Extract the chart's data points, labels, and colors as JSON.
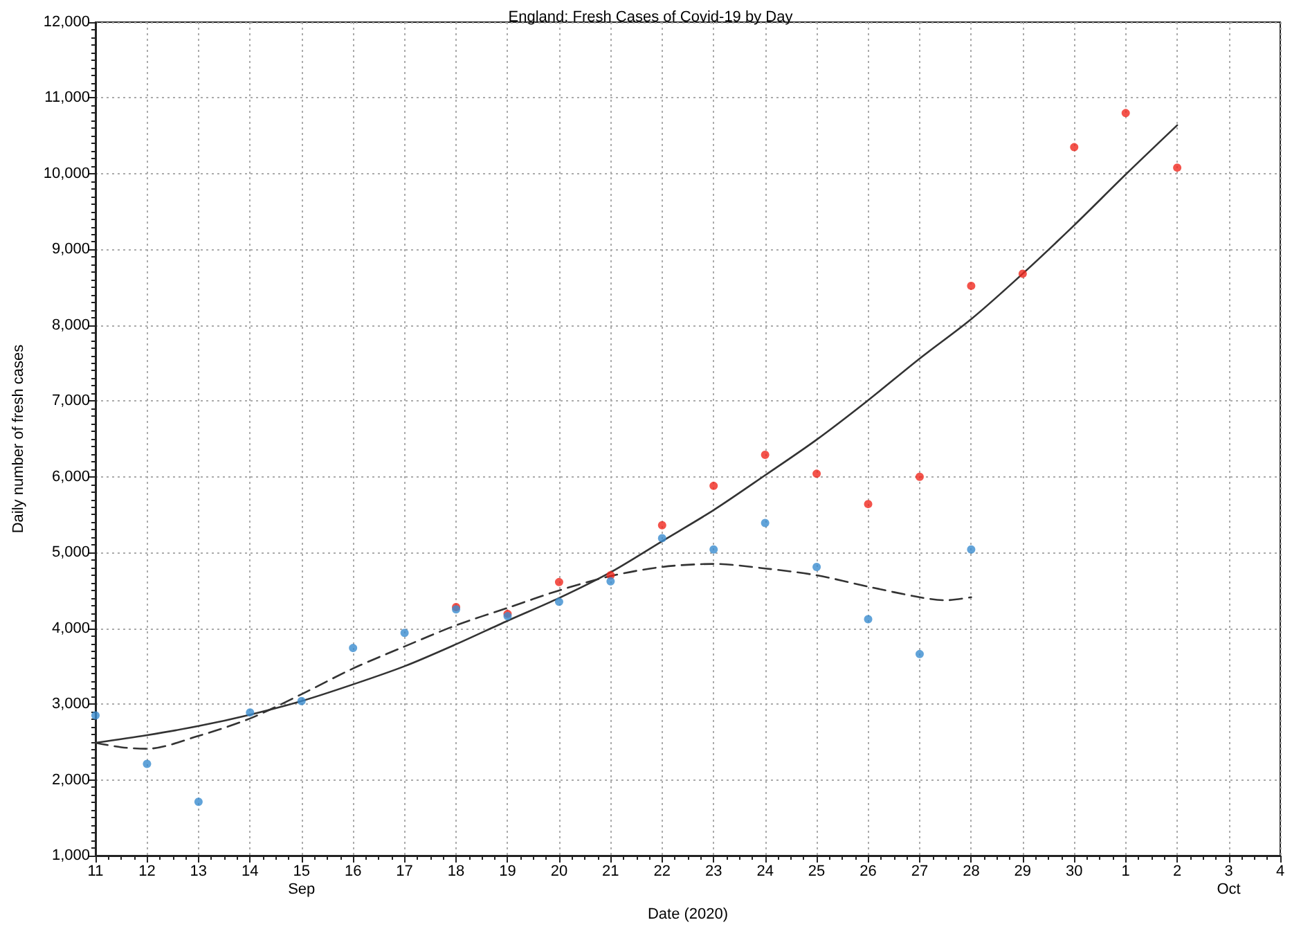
{
  "chart_data": {
    "type": "scatter",
    "title": "England: Fresh Cases of Covid-19 by Day",
    "xlabel": "Date (2020)",
    "ylabel": "Daily number of fresh cases",
    "x": [
      "2020-09-11",
      "2020-09-12",
      "2020-09-13",
      "2020-09-14",
      "2020-09-15",
      "2020-09-16",
      "2020-09-17",
      "2020-09-18",
      "2020-09-19",
      "2020-09-20",
      "2020-09-21",
      "2020-09-22",
      "2020-09-23",
      "2020-09-24",
      "2020-09-25",
      "2020-09-26",
      "2020-09-27",
      "2020-09-28",
      "2020-09-29",
      "2020-09-30",
      "2020-10-01",
      "2020-10-02"
    ],
    "series": [
      {
        "color": "#f0281e",
        "values": [
          null,
          null,
          null,
          null,
          null,
          null,
          null,
          4280,
          4190,
          4610,
          4700,
          5360,
          5880,
          6290,
          6040,
          5640,
          6000,
          8520,
          8680,
          10350,
          10800,
          10080
        ]
      },
      {
        "color": "#3a8ccf",
        "values": [
          2850,
          2210,
          1710,
          2890,
          3040,
          3740,
          3940,
          4250,
          4160,
          4350,
          4620,
          5190,
          5040,
          5390,
          4810,
          4120,
          3660,
          5040,
          null,
          null,
          null,
          null
        ]
      },
      {
        "type": "line",
        "color": "#333333",
        "line_style": "solid",
        "marker": "none",
        "x": [
          "2020-09-11",
          "2020-09-12",
          "2020-09-13",
          "2020-09-14",
          "2020-09-15",
          "2020-09-16",
          "2020-09-17",
          "2020-09-18",
          "2020-09-19",
          "2020-09-20",
          "2020-09-21",
          "2020-09-22",
          "2020-09-23",
          "2020-09-24",
          "2020-09-25",
          "2020-09-26",
          "2020-09-27",
          "2020-09-28",
          "2020-09-29",
          "2020-09-30",
          "2020-10-01",
          "2020-10-02"
        ],
        "values": [
          2490,
          2590,
          2710,
          2860,
          3040,
          3260,
          3500,
          3790,
          4100,
          4400,
          4740,
          5150,
          5560,
          6020,
          6490,
          7010,
          7560,
          8080,
          8680,
          9320,
          9990,
          10640
        ]
      },
      {
        "type": "line",
        "color": "#333333",
        "line_style": "dashed",
        "marker": "none",
        "x": [
          "2020-09-11",
          "2020-09-11T12:00",
          "2020-09-12",
          "2020-09-13",
          "2020-09-14",
          "2020-09-15",
          "2020-09-16",
          "2020-09-17",
          "2020-09-18",
          "2020-09-19",
          "2020-09-20",
          "2020-09-21",
          "2020-09-22",
          "2020-09-23",
          "2020-09-24",
          "2020-09-25",
          "2020-09-26",
          "2020-09-27",
          "2020-09-27T12:00",
          "2020-09-28"
        ],
        "values": [
          2490,
          2430,
          2410,
          2580,
          2810,
          3130,
          3470,
          3760,
          4040,
          4270,
          4500,
          4690,
          4810,
          4850,
          4790,
          4700,
          4550,
          4410,
          4370,
          4410
        ]
      }
    ],
    "xlim": [
      "2020-09-11",
      "2020-10-04"
    ],
    "xticks": [
      {
        "value": "2020-09-11",
        "label": "11"
      },
      {
        "value": "2020-09-12",
        "label": "12"
      },
      {
        "value": "2020-09-13",
        "label": "13"
      },
      {
        "value": "2020-09-14",
        "label": "14"
      },
      {
        "value": "2020-09-15",
        "label": "15\nSep"
      },
      {
        "value": "2020-09-16",
        "label": "16"
      },
      {
        "value": "2020-09-17",
        "label": "17"
      },
      {
        "value": "2020-09-18",
        "label": "18"
      },
      {
        "value": "2020-09-19",
        "label": "19"
      },
      {
        "value": "2020-09-20",
        "label": "20"
      },
      {
        "value": "2020-09-21",
        "label": "21"
      },
      {
        "value": "2020-09-22",
        "label": "22"
      },
      {
        "value": "2020-09-23",
        "label": "23"
      },
      {
        "value": "2020-09-24",
        "label": "24"
      },
      {
        "value": "2020-09-25",
        "label": "25"
      },
      {
        "value": "2020-09-26",
        "label": "26"
      },
      {
        "value": "2020-09-27",
        "label": "27"
      },
      {
        "value": "2020-09-28",
        "label": "28"
      },
      {
        "value": "2020-09-29",
        "label": "29"
      },
      {
        "value": "2020-09-30",
        "label": "30"
      },
      {
        "value": "2020-10-01",
        "label": "1"
      },
      {
        "value": "2020-10-02",
        "label": "2"
      },
      {
        "value": "2020-10-03",
        "label": "3\nOct"
      },
      {
        "value": "2020-10-04",
        "label": "4"
      }
    ],
    "ylim": [
      1000,
      12000
    ],
    "yticks": [
      {
        "value": 1000,
        "label": "1,000"
      },
      {
        "value": 2000,
        "label": "2,000"
      },
      {
        "value": 3000,
        "label": "3,000"
      },
      {
        "value": 4000,
        "label": "4,000"
      },
      {
        "value": 5000,
        "label": "5,000"
      },
      {
        "value": 6000,
        "label": "6,000"
      },
      {
        "value": 7000,
        "label": "7,000"
      },
      {
        "value": 8000,
        "label": "8,000"
      },
      {
        "value": 9000,
        "label": "9,000"
      },
      {
        "value": 10000,
        "label": "10,000"
      },
      {
        "value": 11000,
        "label": "11,000"
      },
      {
        "value": 12000,
        "label": "12,000"
      }
    ],
    "grid": true,
    "marker": "circle"
  }
}
